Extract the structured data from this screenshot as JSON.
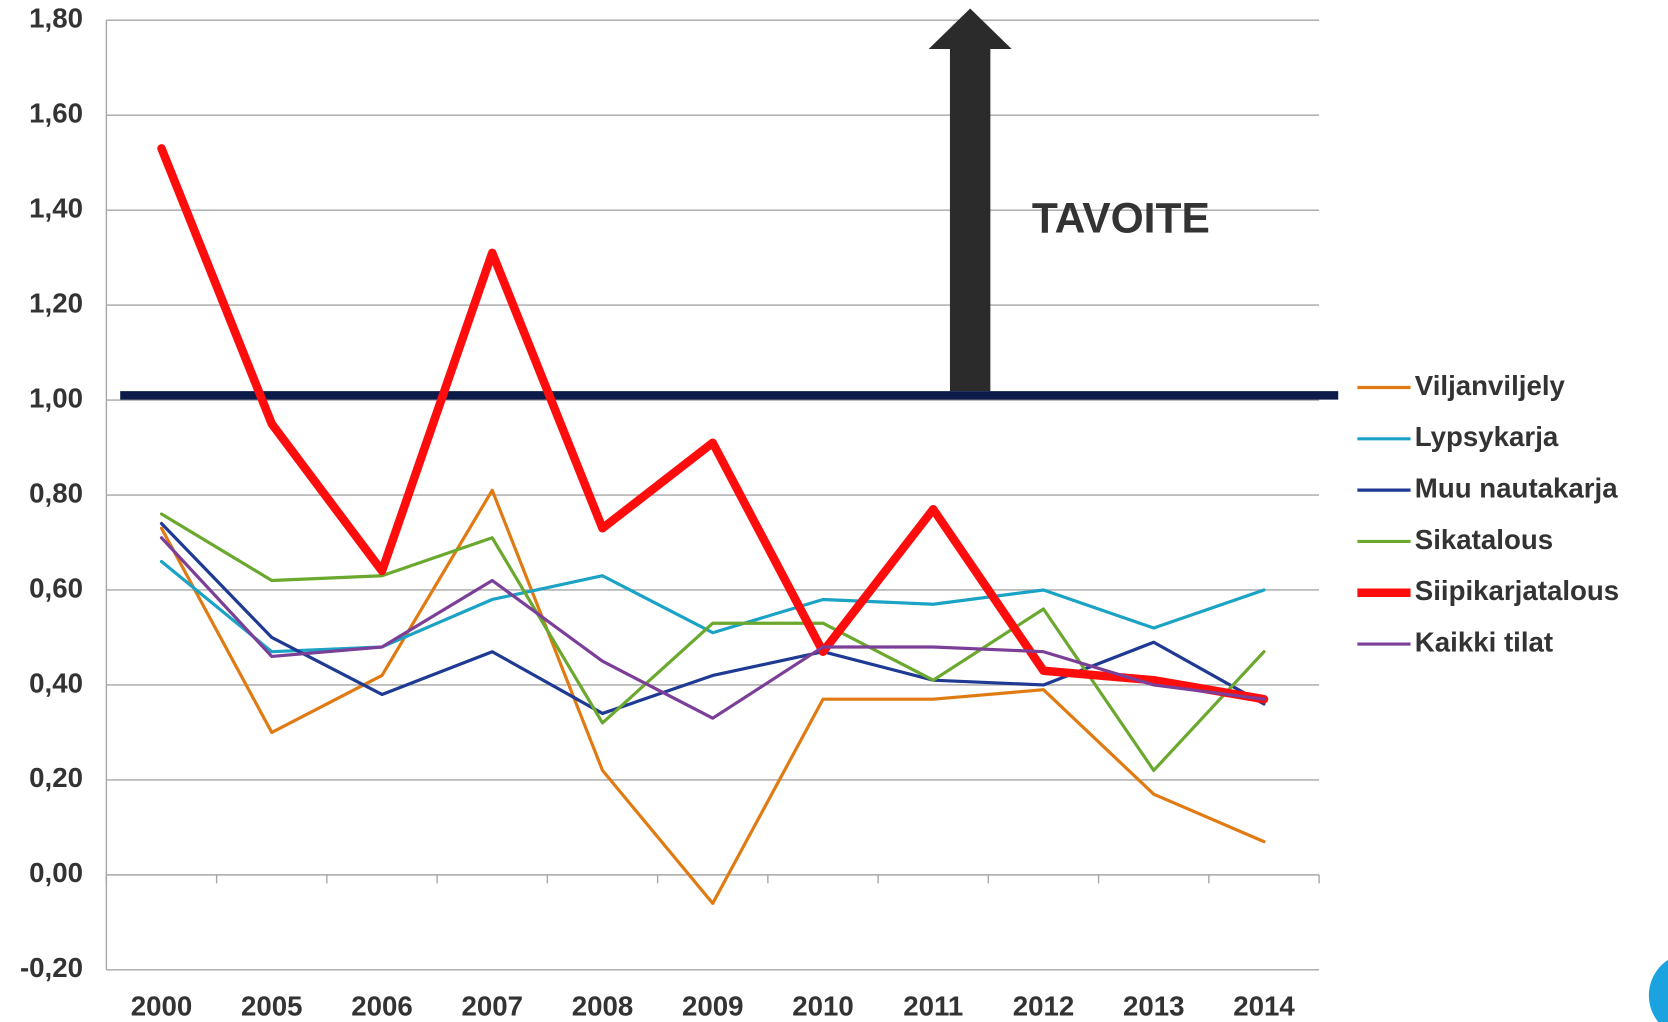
{
  "chart_data": {
    "type": "line",
    "categories": [
      "2000",
      "2005",
      "2006",
      "2007",
      "2008",
      "2009",
      "2010",
      "2011",
      "2012",
      "2013",
      "2014"
    ],
    "series": [
      {
        "name": "Viljanviljely",
        "color": "#e07b13",
        "width": 3,
        "values": [
          0.73,
          0.3,
          0.42,
          0.81,
          0.22,
          -0.06,
          0.37,
          0.37,
          0.39,
          0.17,
          0.07
        ]
      },
      {
        "name": "Lypsykarja",
        "color": "#1ba3c6",
        "width": 3,
        "values": [
          0.66,
          0.47,
          0.48,
          0.58,
          0.63,
          0.51,
          0.58,
          0.57,
          0.6,
          0.52,
          0.6
        ]
      },
      {
        "name": "Muu nautakarja",
        "color": "#1f3a93",
        "width": 3,
        "values": [
          0.74,
          0.5,
          0.38,
          0.47,
          0.34,
          0.42,
          0.47,
          0.41,
          0.4,
          0.49,
          0.36
        ]
      },
      {
        "name": "Sikatalous",
        "color": "#6aa82e",
        "width": 3,
        "values": [
          0.76,
          0.62,
          0.63,
          0.71,
          0.32,
          0.53,
          0.53,
          0.41,
          0.56,
          0.22,
          0.47
        ]
      },
      {
        "name": "Siipikarjatalous",
        "color": "#ff0d0d",
        "width": 8,
        "values": [
          1.53,
          0.95,
          0.64,
          1.31,
          0.73,
          0.91,
          0.47,
          0.77,
          0.43,
          0.41,
          0.37
        ]
      },
      {
        "name": "Kaikki tilat",
        "color": "#7b3f98",
        "width": 3,
        "values": [
          0.71,
          0.46,
          0.48,
          0.62,
          0.45,
          0.33,
          0.48,
          0.48,
          0.47,
          0.4,
          0.37
        ]
      }
    ],
    "ylim": [
      -0.2,
      1.8
    ],
    "yticks": [
      {
        "value": -0.2,
        "label": "-0,20"
      },
      {
        "value": 0,
        "label": "0,00"
      },
      {
        "value": 0.2,
        "label": "0,20"
      },
      {
        "value": 0.4,
        "label": "0,40"
      },
      {
        "value": 0.6,
        "label": "0,60"
      },
      {
        "value": 0.8,
        "label": "0,80"
      },
      {
        "value": 1.0,
        "label": "1,00"
      },
      {
        "value": 1.2,
        "label": "1,20"
      },
      {
        "value": 1.4,
        "label": "1,40"
      },
      {
        "value": 1.6,
        "label": "1,60"
      },
      {
        "value": 1.8,
        "label": "1,80"
      }
    ],
    "grid": true,
    "legend": "right",
    "target": {
      "value": 1.01,
      "label": "TAVOITE",
      "color": "#0d1b4a"
    }
  }
}
